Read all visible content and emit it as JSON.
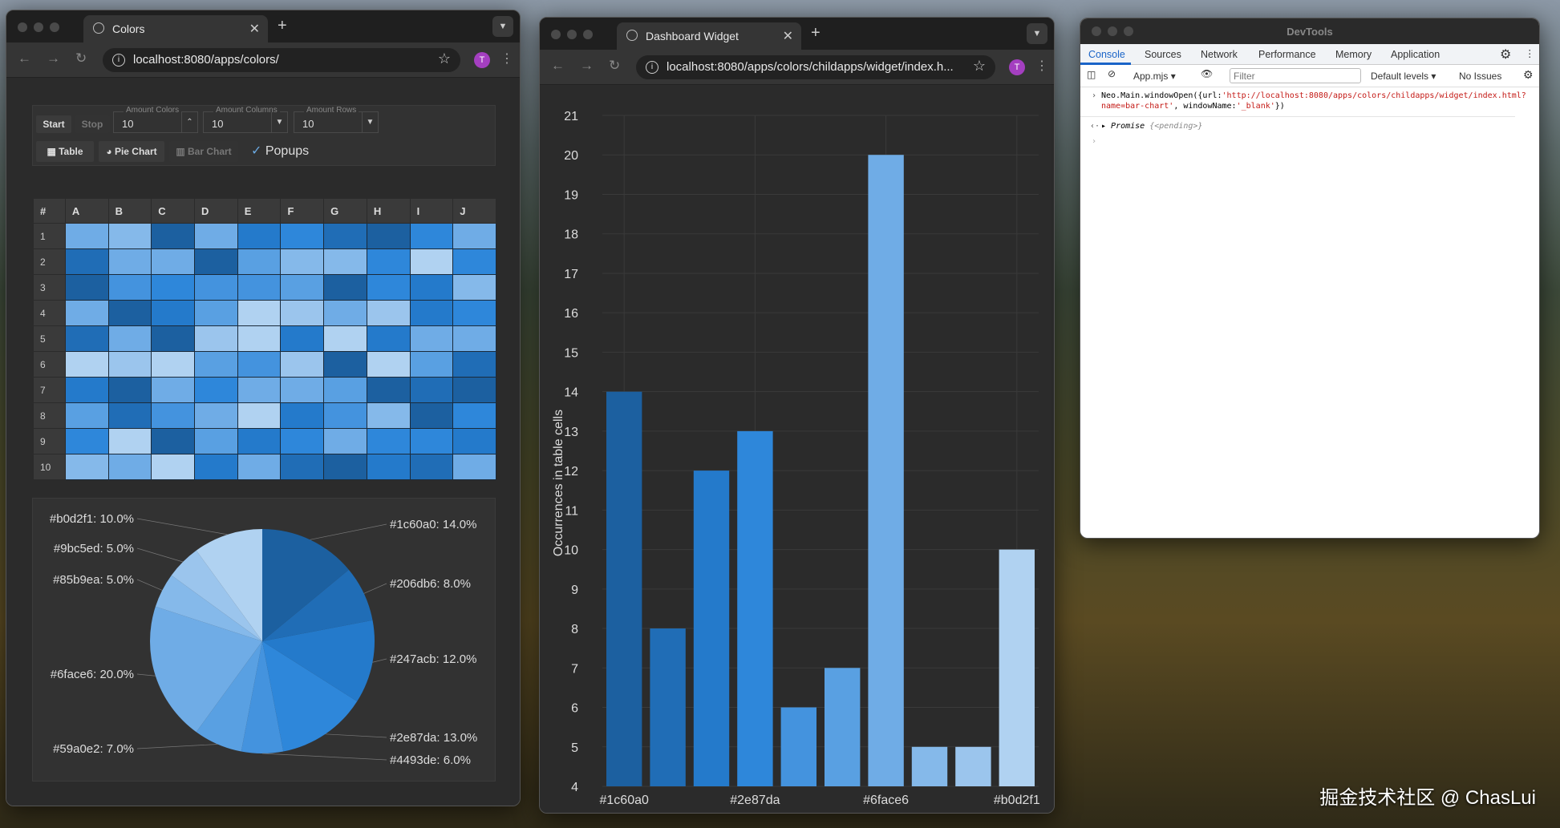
{
  "colors_window": {
    "tab_title": "Colors",
    "url": "localhost:8080/apps/colors/",
    "avatar": "T",
    "toolbar": {
      "start": "Start",
      "stop": "Stop",
      "amount_colors_label": "Amount Colors",
      "amount_colors": "10",
      "amount_columns_label": "Amount Columns",
      "amount_columns": "10",
      "amount_rows_label": "Amount Rows",
      "amount_rows": "10",
      "table": "Table",
      "pie_chart": "Pie Chart",
      "bar_chart": "Bar Chart",
      "popups": "Popups",
      "popups_checked": true
    },
    "table": {
      "headers": [
        "#",
        "A",
        "B",
        "C",
        "D",
        "E",
        "F",
        "G",
        "H",
        "I",
        "J"
      ],
      "rows": [
        [
          6,
          7,
          0,
          6,
          2,
          3,
          1,
          0,
          3,
          6
        ],
        [
          1,
          6,
          6,
          0,
          5,
          7,
          7,
          3,
          9,
          3
        ],
        [
          0,
          4,
          3,
          4,
          4,
          5,
          0,
          3,
          2,
          7
        ],
        [
          6,
          0,
          2,
          5,
          9,
          8,
          6,
          8,
          2,
          3
        ],
        [
          1,
          6,
          0,
          8,
          9,
          2,
          9,
          2,
          6,
          6
        ],
        [
          9,
          8,
          9,
          5,
          4,
          8,
          0,
          9,
          5,
          1
        ],
        [
          2,
          0,
          6,
          3,
          6,
          6,
          5,
          0,
          1,
          0
        ],
        [
          5,
          1,
          4,
          6,
          9,
          2,
          4,
          7,
          0,
          3
        ],
        [
          3,
          9,
          0,
          5,
          2,
          3,
          6,
          3,
          3,
          2
        ],
        [
          7,
          6,
          9,
          2,
          6,
          1,
          0,
          2,
          1,
          6
        ]
      ]
    },
    "pie_labels": [
      "#1c60a0: 14.0%",
      "#206db6: 8.0%",
      "#247acb: 12.0%",
      "#2e87da: 13.0%",
      "#4493de: 6.0%",
      "#59a0e2: 7.0%",
      "#6face6: 20.0%",
      "#85b9ea: 5.0%",
      "#9bc5ed: 5.0%",
      "#b0d2f1: 10.0%"
    ]
  },
  "widget_window": {
    "tab_title": "Dashboard Widget",
    "url": "localhost:8080/apps/colors/childapps/widget/index.h...",
    "avatar": "T"
  },
  "chart_data": [
    {
      "type": "pie",
      "categories": [
        "#1c60a0",
        "#206db6",
        "#247acb",
        "#2e87da",
        "#4493de",
        "#59a0e2",
        "#6face6",
        "#85b9ea",
        "#9bc5ed",
        "#b0d2f1"
      ],
      "values": [
        14,
        8,
        12,
        13,
        6,
        7,
        20,
        5,
        5,
        10
      ],
      "colors": [
        "#1c60a0",
        "#206db6",
        "#247acb",
        "#2e87da",
        "#4493de",
        "#59a0e2",
        "#6face6",
        "#85b9ea",
        "#9bc5ed",
        "#b0d2f1"
      ]
    },
    {
      "type": "bar",
      "categories": [
        "#1c60a0",
        "#206db6",
        "#247acb",
        "#2e87da",
        "#4493de",
        "#59a0e2",
        "#6face6",
        "#85b9ea",
        "#9bc5ed",
        "#b0d2f1"
      ],
      "values": [
        14,
        8,
        12,
        13,
        6,
        7,
        20,
        5,
        5,
        10
      ],
      "ylabel": "Occurrences in table cells",
      "ylim": [
        4,
        21
      ],
      "yticks": [
        4,
        5,
        6,
        7,
        8,
        9,
        10,
        11,
        12,
        13,
        14,
        15,
        16,
        17,
        18,
        19,
        20,
        21
      ],
      "xtick_labels": [
        "#1c60a0",
        "#2e87da",
        "#6face6",
        "#b0d2f1"
      ],
      "grid": true
    }
  ],
  "devtools": {
    "title": "DevTools",
    "tabs": [
      "Console",
      "Sources",
      "Network",
      "Performance",
      "Memory",
      "Application"
    ],
    "context": "App.mjs",
    "filter_placeholder": "Filter",
    "levels": "Default levels",
    "issues": "No Issues",
    "cmd_prefix": "Neo.Main.windowOpen({url:",
    "cmd_url": "'http://localhost:8080/apps/colors/childapps/widget/i",
    "cmd_url2": "ndex.html?name=bar-chart'",
    "cmd_mid": ", windowName:",
    "cmd_name": "'_blank'",
    "cmd_end": "})",
    "result_label": "Promise",
    "result_value": "{<pending>}"
  },
  "watermark": "掘金技术社区 @ ChasLui"
}
